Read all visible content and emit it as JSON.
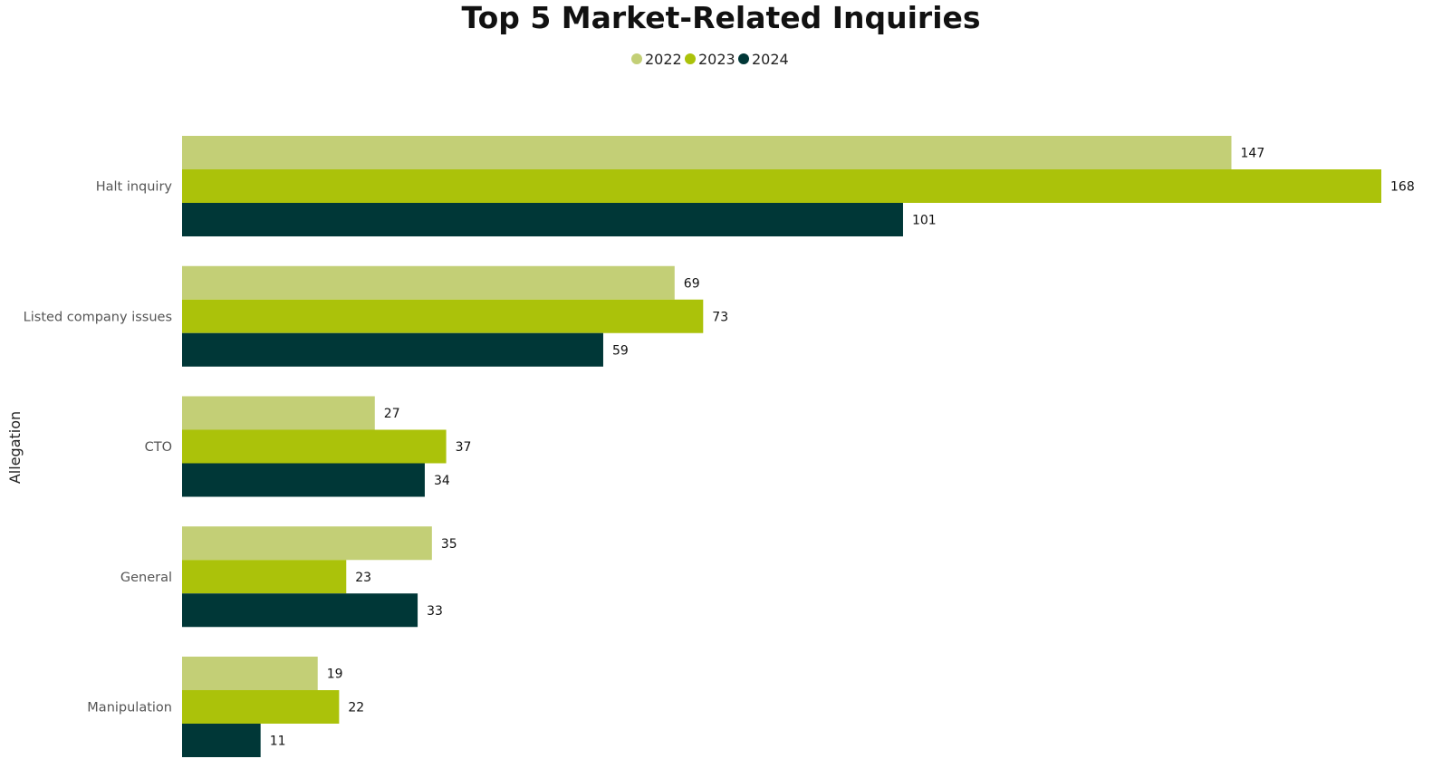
{
  "chart_data": {
    "type": "bar",
    "orientation": "horizontal",
    "title": "Top 5 Market-Related Inquiries",
    "ylabel": "Allegation",
    "xlabel": "",
    "categories": [
      "Halt inquiry",
      "Listed company issues",
      "CTO",
      "General",
      "Manipulation"
    ],
    "series": [
      {
        "name": "2022",
        "color": "#c3cf76",
        "values": [
          147,
          69,
          27,
          35,
          19
        ]
      },
      {
        "name": "2023",
        "color": "#abc20a",
        "values": [
          168,
          73,
          37,
          23,
          22
        ]
      },
      {
        "name": "2024",
        "color": "#003737",
        "values": [
          101,
          59,
          34,
          33,
          11
        ]
      }
    ],
    "xlim": [
      0,
      168
    ],
    "grid": false,
    "legend_position": "top-center",
    "data_labels": true
  }
}
